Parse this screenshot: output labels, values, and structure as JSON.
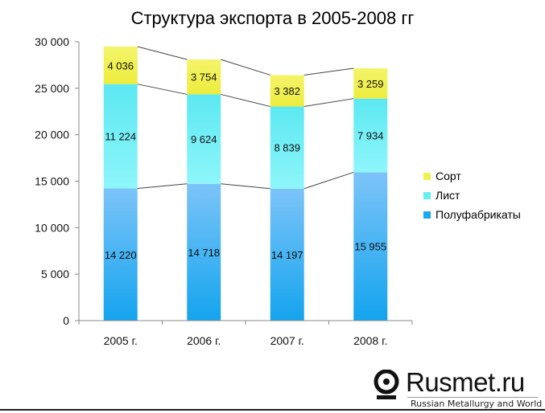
{
  "chart_data": {
    "type": "bar",
    "stacked": true,
    "title": "Структура экспорта в 2005-2008 гг",
    "categories": [
      "2005 г.",
      "2006 г.",
      "2007 г.",
      "2008 г."
    ],
    "series": [
      {
        "name": "Полуфабрикаты",
        "values": [
          14220,
          14718,
          14197,
          15955
        ],
        "labels": [
          "14 220",
          "14 718",
          "14 197",
          "15 955"
        ],
        "color": "#1aa8f0"
      },
      {
        "name": "Лист",
        "values": [
          11224,
          9624,
          8839,
          7934
        ],
        "labels": [
          "11 224",
          "9 624",
          "8 839",
          "7 934"
        ],
        "color": "#66eef4"
      },
      {
        "name": "Сорт",
        "values": [
          4036,
          3754,
          3382,
          3259
        ],
        "labels": [
          "4 036",
          "3 754",
          "3 382",
          "3 259"
        ],
        "color": "#f0f050"
      }
    ],
    "ylim": [
      0,
      30000
    ],
    "yticks": [
      {
        "value": 0,
        "label": "0"
      },
      {
        "value": 5000,
        "label": "5 000"
      },
      {
        "value": 10000,
        "label": "10 000"
      },
      {
        "value": 15000,
        "label": "15 000"
      },
      {
        "value": 20000,
        "label": "20 000"
      },
      {
        "value": 25000,
        "label": "25 000"
      },
      {
        "value": 30000,
        "label": "30 000"
      }
    ],
    "series_lines": true,
    "grid": false,
    "legend_position": "right"
  },
  "legend": {
    "items": [
      {
        "label": "Сорт",
        "color": "#f0f050"
      },
      {
        "label": "Лист",
        "color": "#66eef4"
      },
      {
        "label": "Полуфабрикаты",
        "color": "#1aa8f0"
      }
    ]
  },
  "logo": {
    "name": "Rusmet.ru",
    "tagline": "Russian Metallurgy and World"
  }
}
